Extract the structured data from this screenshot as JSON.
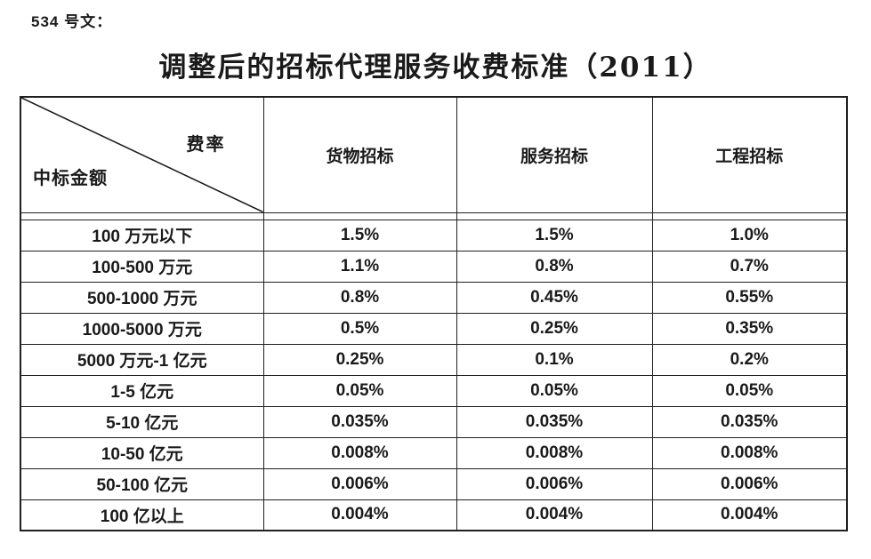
{
  "doc_label": "534 号文：",
  "title": "调整后的招标代理服务收费标准（2011）",
  "table": {
    "corner": {
      "top_right": "费率",
      "bottom_left": "中标金额"
    },
    "columns": [
      "货物招标",
      "服务招标",
      "工程招标"
    ],
    "rows": [
      {
        "label": "100 万元以下",
        "values": [
          "1.5%",
          "1.5%",
          "1.0%"
        ]
      },
      {
        "label": "100-500 万元",
        "values": [
          "1.1%",
          "0.8%",
          "0.7%"
        ]
      },
      {
        "label": "500-1000 万元",
        "values": [
          "0.8%",
          "0.45%",
          "0.55%"
        ]
      },
      {
        "label": "1000-5000 万元",
        "values": [
          "0.5%",
          "0.25%",
          "0.35%"
        ]
      },
      {
        "label": "5000 万元-1 亿元",
        "values": [
          "0.25%",
          "0.1%",
          "0.2%"
        ]
      },
      {
        "label": "1-5 亿元",
        "values": [
          "0.05%",
          "0.05%",
          "0.05%"
        ]
      },
      {
        "label": "5-10 亿元",
        "values": [
          "0.035%",
          "0.035%",
          "0.035%"
        ]
      },
      {
        "label": "10-50 亿元",
        "values": [
          "0.008%",
          "0.008%",
          "0.008%"
        ]
      },
      {
        "label": "50-100 亿元",
        "values": [
          "0.006%",
          "0.006%",
          "0.006%"
        ]
      },
      {
        "label": "100 亿以上",
        "values": [
          "0.004%",
          "0.004%",
          "0.004%"
        ]
      }
    ]
  },
  "colors": {
    "text": "#1a1a1a",
    "border": "#1f1f1f",
    "background": "#ffffff"
  }
}
